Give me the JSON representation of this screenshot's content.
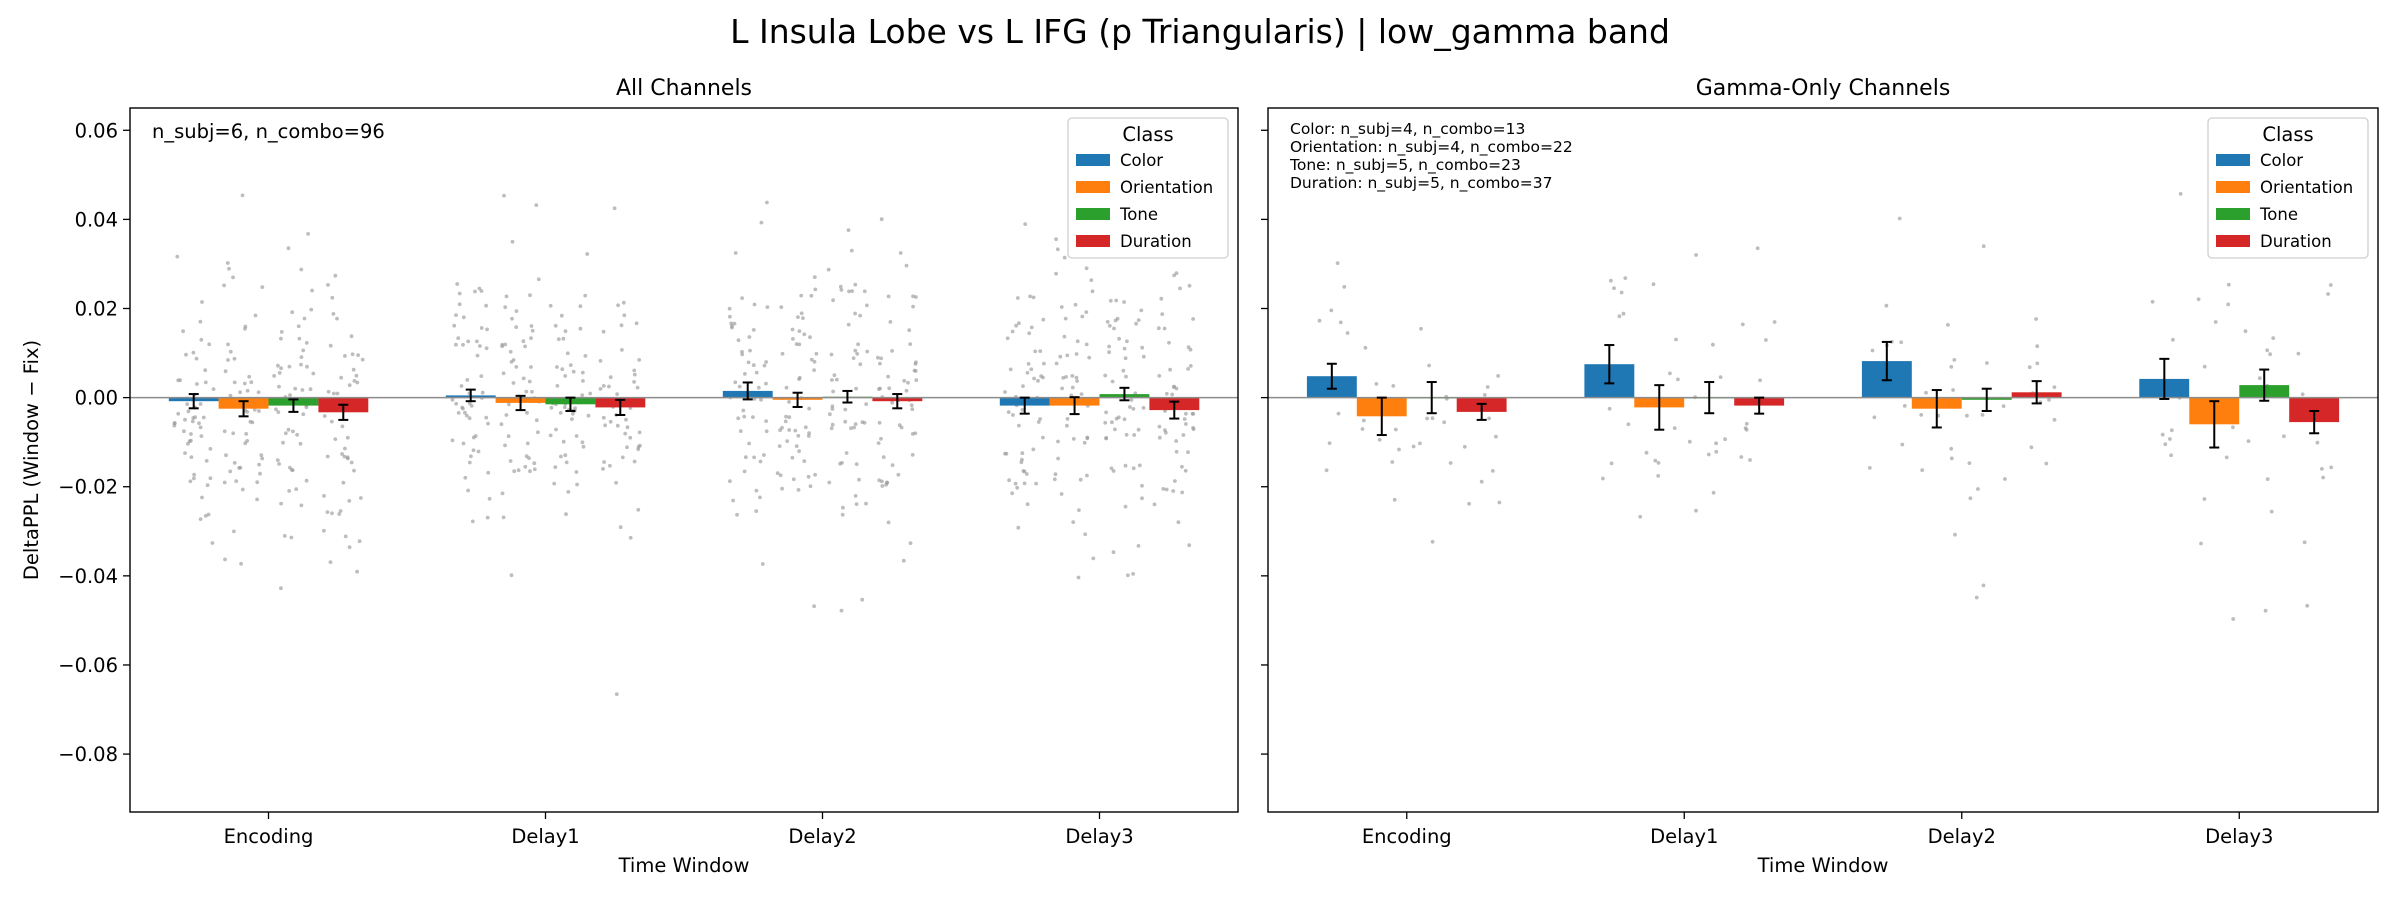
{
  "title": "L Insula Lobe vs L IFG (p Triangularis)  |  low_gamma band",
  "colors": {
    "Color": "#1f77b4",
    "Orientation": "#ff7f0e",
    "Tone": "#2ca02c",
    "Duration": "#d62728",
    "points": "#9a9a9a"
  },
  "chart_data": [
    {
      "type": "bar",
      "title": "All Channels",
      "xlabel": "Time Window",
      "ylabel": "DeltaPPL (Window − Fix)",
      "categories": [
        "Encoding",
        "Delay1",
        "Delay2",
        "Delay3"
      ],
      "ylim": [
        -0.093,
        0.065
      ],
      "yticks": [
        "0.06",
        "0.04",
        "0.02",
        "0.00",
        "−0.02",
        "−0.04",
        "−0.06",
        "−0.08"
      ],
      "ytick_values": [
        0.06,
        0.04,
        0.02,
        0.0,
        -0.02,
        -0.04,
        -0.06,
        -0.08
      ],
      "annotation": [
        "n_subj=6, n_combo=96"
      ],
      "legend": {
        "title": "Class",
        "position": "top-right"
      },
      "series": [
        {
          "name": "Color",
          "values": [
            -0.0008,
            0.0005,
            0.0015,
            -0.0018
          ],
          "errors": [
            0.0016,
            0.0013,
            0.0019,
            0.0018
          ]
        },
        {
          "name": "Orientation",
          "values": [
            -0.0025,
            -0.0012,
            -0.0005,
            -0.0018
          ],
          "errors": [
            0.0017,
            0.0016,
            0.0016,
            0.0019
          ]
        },
        {
          "name": "Tone",
          "values": [
            -0.0018,
            -0.0015,
            0.0002,
            0.0008
          ],
          "errors": [
            0.0014,
            0.0015,
            0.0013,
            0.0014
          ]
        },
        {
          "name": "Duration",
          "values": [
            -0.0033,
            -0.0022,
            -0.0008,
            -0.0028
          ],
          "errors": [
            0.0017,
            0.0017,
            0.0016,
            0.0019
          ]
        }
      ]
    },
    {
      "type": "bar",
      "title": "Gamma-Only Channels",
      "xlabel": "Time Window",
      "ylabel": "",
      "categories": [
        "Encoding",
        "Delay1",
        "Delay2",
        "Delay3"
      ],
      "ylim": [
        -0.093,
        0.065
      ],
      "yticks": [],
      "ytick_values": [
        0.06,
        0.04,
        0.02,
        0.0,
        -0.02,
        -0.04,
        -0.06,
        -0.08
      ],
      "annotation": [
        "Color: n_subj=4, n_combo=13",
        "Orientation: n_subj=4, n_combo=22",
        "Tone: n_subj=5, n_combo=23",
        "Duration: n_subj=5, n_combo=37"
      ],
      "legend": {
        "title": "Class",
        "position": "top-right"
      },
      "series": [
        {
          "name": "Color",
          "values": [
            0.0048,
            0.0075,
            0.0082,
            0.0042
          ],
          "errors": [
            0.0028,
            0.0043,
            0.0043,
            0.0045
          ]
        },
        {
          "name": "Orientation",
          "values": [
            -0.0042,
            -0.0022,
            -0.0025,
            -0.006
          ],
          "errors": [
            0.0042,
            0.005,
            0.0042,
            0.0052
          ]
        },
        {
          "name": "Tone",
          "values": [
            0.0,
            0.0,
            -0.0005,
            0.0028
          ],
          "errors": [
            0.0035,
            0.0035,
            0.0025,
            0.0035
          ]
        },
        {
          "name": "Duration",
          "values": [
            -0.0032,
            -0.0018,
            0.0012,
            -0.0055
          ],
          "errors": [
            0.0018,
            0.0018,
            0.0025,
            0.0025
          ]
        }
      ]
    }
  ]
}
